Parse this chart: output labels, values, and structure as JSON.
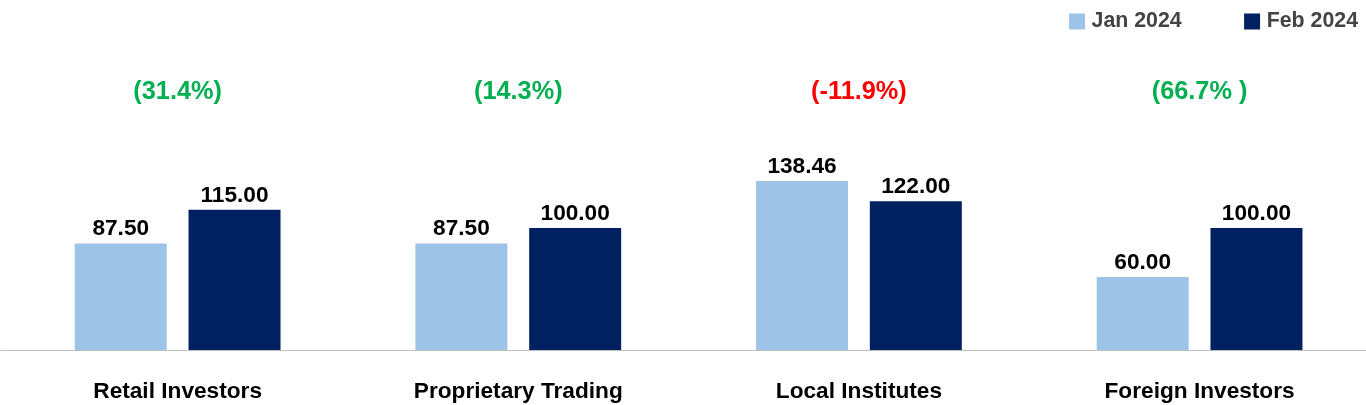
{
  "chart_data": {
    "type": "bar",
    "categories": [
      "Retail Investors",
      "Proprietary Trading",
      "Local Institutes",
      "Foreign Investors"
    ],
    "series": [
      {
        "name": "Jan 2024",
        "color": "#9dc3e6",
        "values": [
          87.5,
          87.5,
          138.46,
          60.0
        ],
        "value_labels": [
          "87.50",
          "87.50",
          "138.46",
          "60.00"
        ]
      },
      {
        "name": "Feb 2024",
        "color": "#002060",
        "values": [
          115.0,
          100.0,
          122.0,
          100.0
        ],
        "value_labels": [
          "115.00",
          "100.00",
          "122.00",
          "100.00"
        ]
      }
    ],
    "annotations": [
      "(31.4%)",
      "(14.3%)",
      "(-11.9%)",
      "(66.7% )"
    ],
    "grid": false,
    "legend": "top right"
  }
}
